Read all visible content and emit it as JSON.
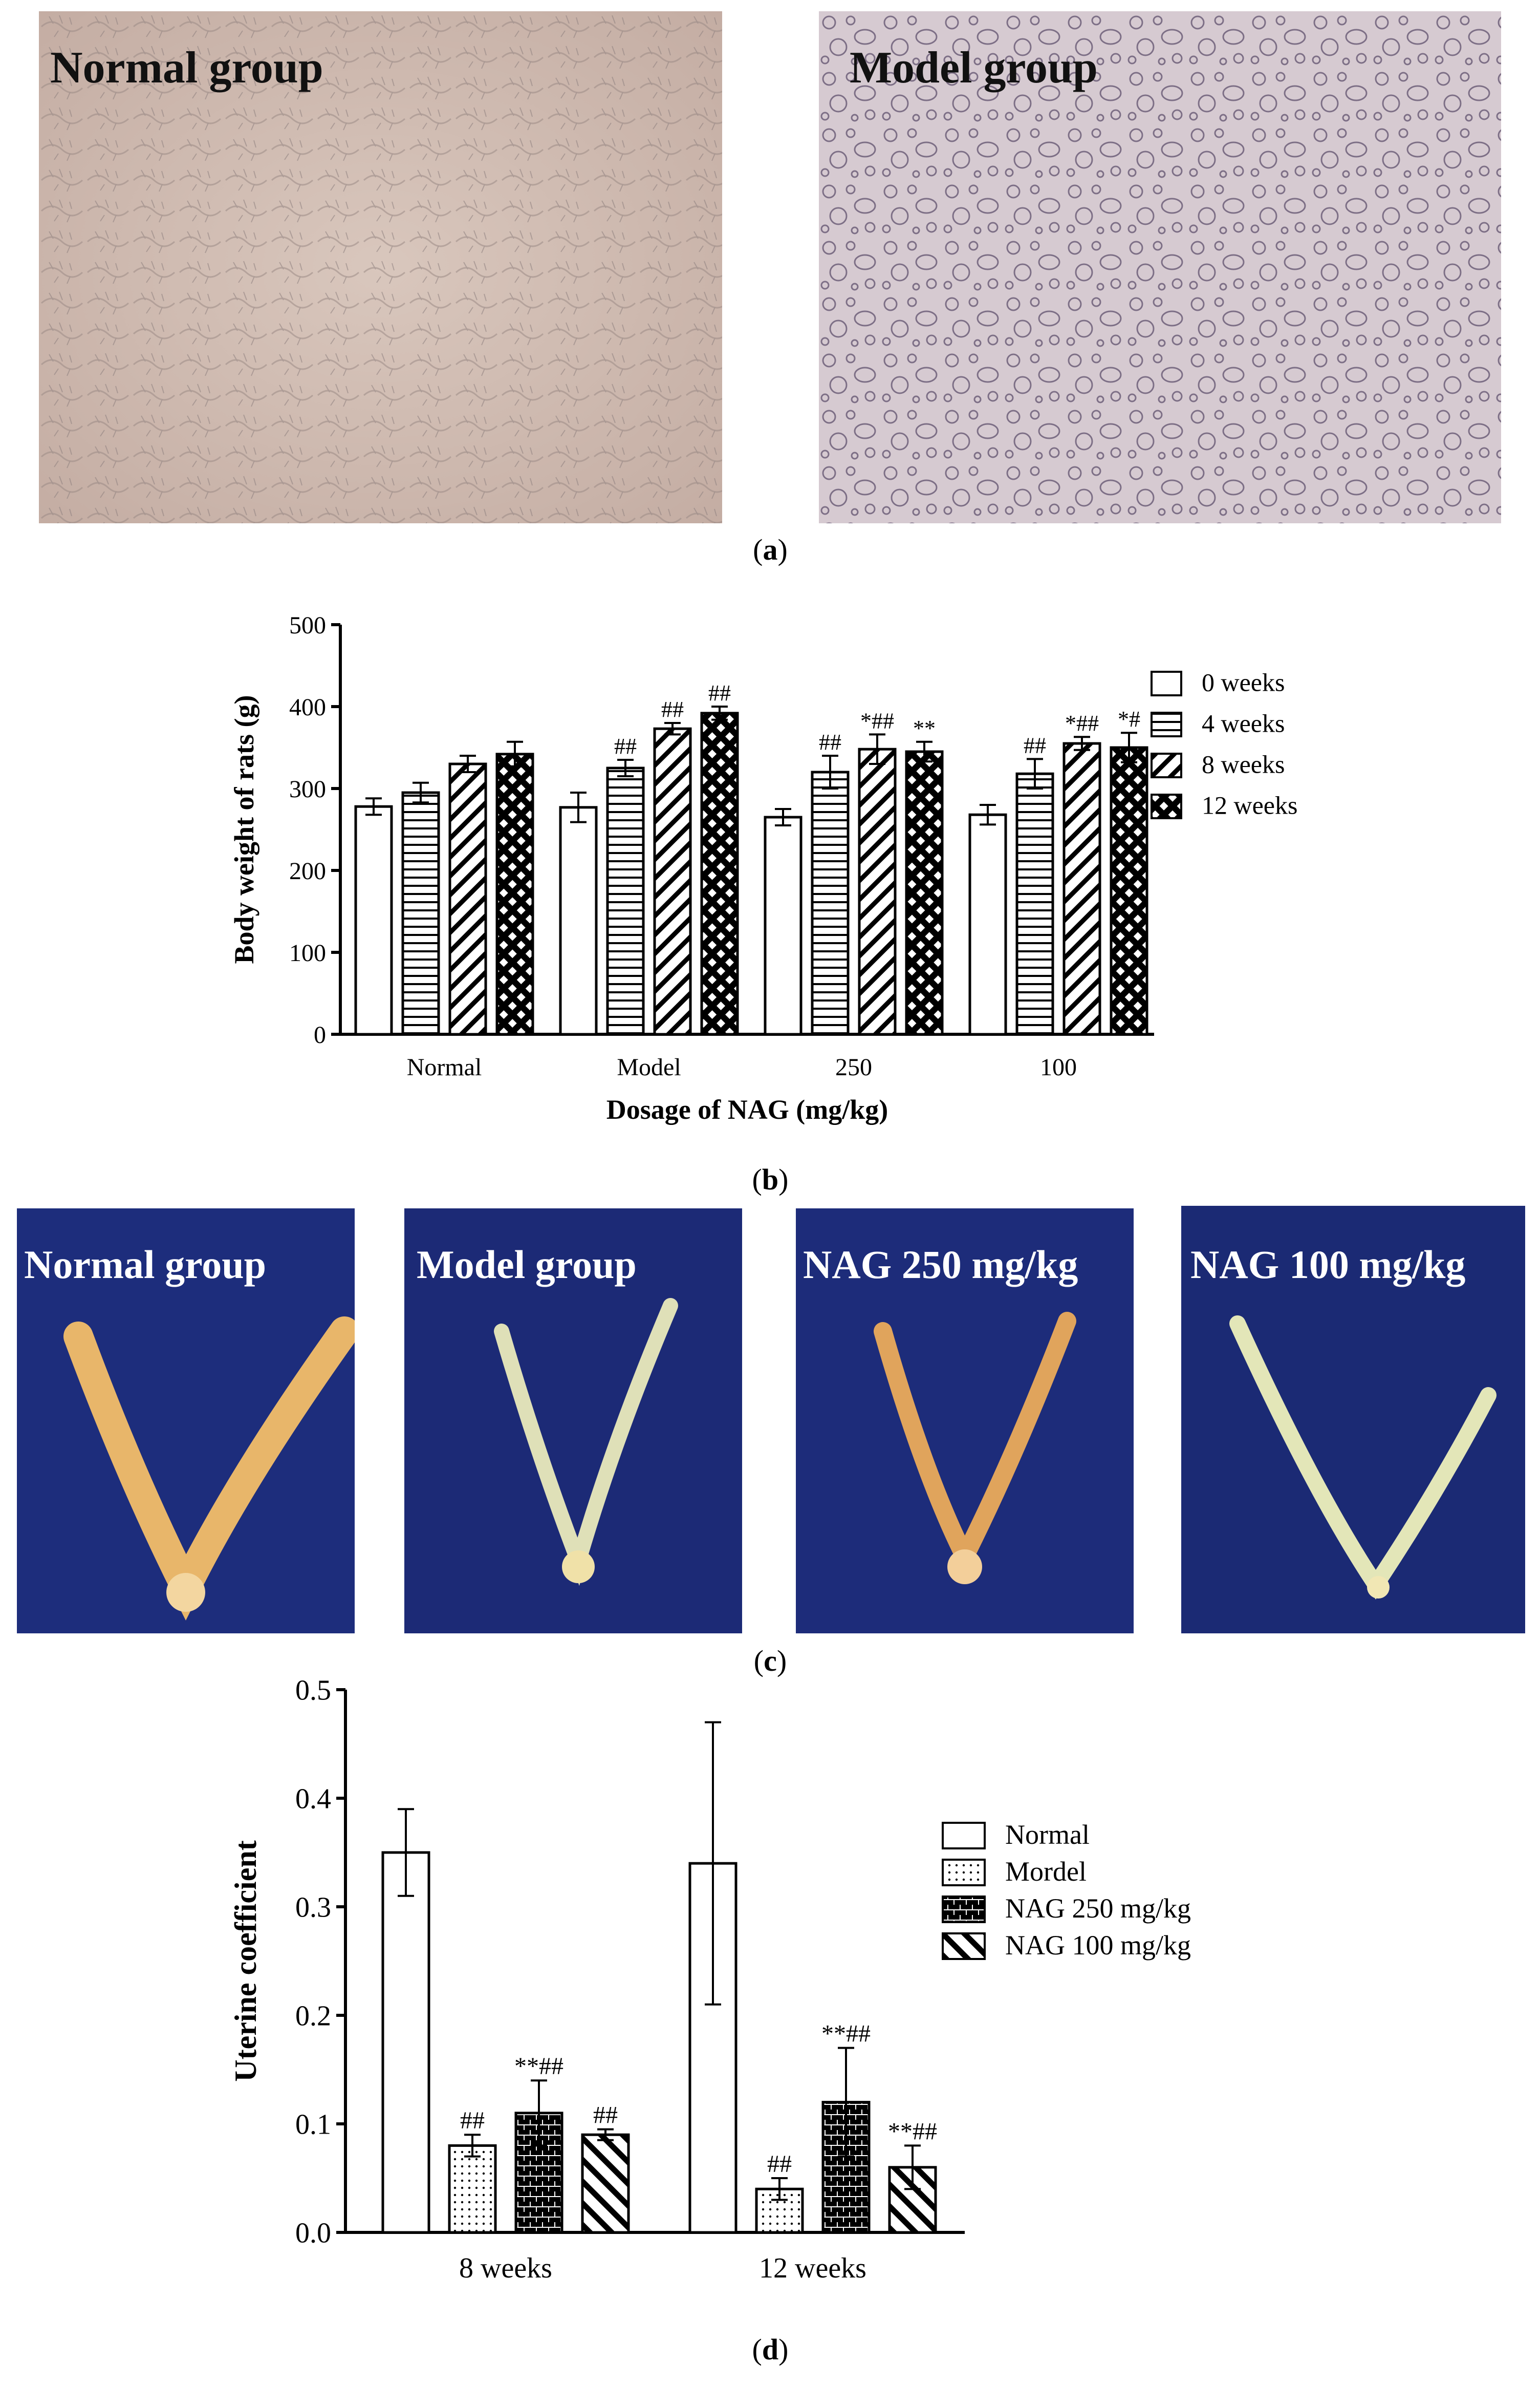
{
  "panel_a": {
    "labels": [
      "Normal group",
      "Model group"
    ],
    "caption_letter": "a"
  },
  "panel_c": {
    "labels": [
      "Normal group",
      "Model group",
      "NAG 250 mg/kg",
      "NAG 100 mg/kg"
    ],
    "caption_letter": "c"
  },
  "panel_b": {
    "caption_letter": "b"
  },
  "panel_d": {
    "caption_letter": "d"
  },
  "colors": {
    "photo_a_bg": "#cdb8ae",
    "photo_c_bg": "#1c2c78",
    "tissue": "#e8b66a"
  },
  "chart_data": [
    {
      "type": "bar",
      "xlabel": "Dosage of NAG (mg/kg)",
      "ylabel": "Body weight of rats (g)",
      "ylim": [
        0,
        500
      ],
      "yticks": [
        0,
        100,
        200,
        300,
        400,
        500
      ],
      "categories": [
        "Normal",
        "Model",
        "250",
        "100"
      ],
      "legend_position": "right",
      "series": [
        {
          "name": "0 weeks",
          "pattern": "none",
          "values": [
            278,
            277,
            265,
            268
          ],
          "errors": [
            10,
            18,
            10,
            12
          ],
          "annotations": [
            "",
            "",
            "",
            ""
          ]
        },
        {
          "name": "4 weeks",
          "pattern": "horizontal",
          "values": [
            295,
            325,
            320,
            318
          ],
          "errors": [
            12,
            10,
            20,
            18
          ],
          "annotations": [
            "",
            "##",
            "##",
            "##"
          ]
        },
        {
          "name": "8 weeks",
          "pattern": "diagonal",
          "values": [
            330,
            373,
            348,
            355
          ],
          "errors": [
            10,
            7,
            18,
            8
          ],
          "annotations": [
            "",
            "##",
            "*##",
            "*##"
          ]
        },
        {
          "name": "12 weeks",
          "pattern": "crosshatch",
          "values": [
            342,
            392,
            345,
            350
          ],
          "errors": [
            15,
            8,
            12,
            18
          ],
          "annotations": [
            "",
            "##",
            "**",
            "*#"
          ]
        }
      ]
    },
    {
      "type": "bar",
      "xlabel": "",
      "ylabel": "Uterine coefficient",
      "ylim": [
        0,
        0.5
      ],
      "yticks": [
        "0.0",
        "0.1",
        "0.2",
        "0.3",
        "0.4",
        "0.5"
      ],
      "categories": [
        "8 weeks",
        "12 weeks"
      ],
      "legend_position": "right",
      "series": [
        {
          "name": "Normal",
          "pattern": "none",
          "values": [
            0.35,
            0.34
          ],
          "errors": [
            0.04,
            0.13
          ],
          "annotations": [
            "",
            ""
          ]
        },
        {
          "name": "Mordel",
          "pattern": "dots",
          "values": [
            0.08,
            0.04
          ],
          "errors": [
            0.01,
            0.01
          ],
          "annotations": [
            "##",
            "##"
          ]
        },
        {
          "name": "NAG 250 mg/kg",
          "pattern": "brick",
          "values": [
            0.11,
            0.12
          ],
          "errors": [
            0.03,
            0.05
          ],
          "annotations": [
            "**##",
            "**##"
          ]
        },
        {
          "name": "NAG 100 mg/kg",
          "pattern": "backdiag",
          "values": [
            0.09,
            0.06
          ],
          "errors": [
            0.005,
            0.02
          ],
          "annotations": [
            "##",
            "**##"
          ]
        }
      ]
    }
  ]
}
